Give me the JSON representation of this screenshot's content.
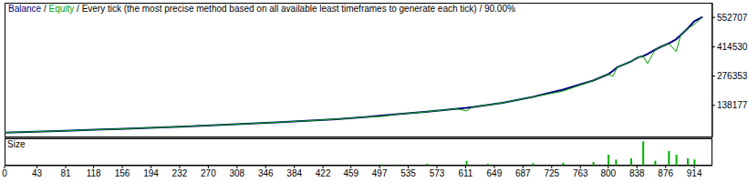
{
  "chart_data": [
    {
      "type": "line",
      "title": "Every tick (the most precise method based on all available least timeframes to generate each tick) / 90.00%",
      "x": [
        0,
        40,
        80,
        120,
        160,
        200,
        240,
        280,
        320,
        360,
        400,
        440,
        480,
        500,
        520,
        560,
        600,
        612,
        620,
        660,
        700,
        740,
        780,
        800,
        806,
        812,
        830,
        840,
        846,
        852,
        862,
        870,
        880,
        890,
        896,
        905,
        914,
        925
      ],
      "series": [
        {
          "name": "Balance",
          "color": "#000080",
          "values": [
            10000,
            14000,
            18000,
            23000,
            28000,
            33000,
            39000,
            45000,
            51000,
            58000,
            65000,
            73000,
            84000,
            90000,
            96000,
            108000,
            122000,
            126000,
            130000,
            150000,
            178000,
            212000,
            255000,
            285000,
            300000,
            318000,
            345000,
            365000,
            370000,
            380000,
            400000,
            415000,
            430000,
            450000,
            470000,
            500000,
            535000,
            555000
          ]
        },
        {
          "name": "Equity",
          "color": "#00a000",
          "values": [
            10000,
            14000,
            18000,
            23000,
            28000,
            33000,
            39000,
            45000,
            51000,
            58000,
            65000,
            73000,
            84000,
            86000,
            96000,
            108000,
            122000,
            112000,
            130000,
            150000,
            178000,
            205000,
            255000,
            285000,
            275000,
            318000,
            345000,
            365000,
            370000,
            335000,
            400000,
            415000,
            430000,
            392000,
            470000,
            500000,
            520000,
            555000
          ]
        }
      ],
      "xlim": [
        0,
        938
      ],
      "ylim": [
        -13000,
        622000
      ],
      "yticks": [
        0,
        138177,
        276353,
        414530,
        552707
      ],
      "tick_labels": "y",
      "grid": false
    },
    {
      "type": "bar",
      "title": "Size",
      "x": [
        500,
        520,
        560,
        612,
        640,
        700,
        740,
        780,
        800,
        810,
        830,
        846,
        862,
        880,
        890,
        905,
        914
      ],
      "values": [
        0.05,
        0.05,
        0.08,
        0.2,
        0.08,
        0.1,
        0.12,
        0.15,
        0.45,
        0.25,
        0.3,
        1.0,
        0.2,
        0.6,
        0.45,
        0.3,
        0.25
      ],
      "color": "#00b000",
      "xlim": [
        0,
        938
      ],
      "ylim": [
        0,
        1.05
      ],
      "xticks": [
        0,
        43,
        81,
        118,
        156,
        194,
        232,
        270,
        308,
        346,
        384,
        422,
        459,
        497,
        535,
        573,
        611,
        649,
        687,
        725,
        763,
        800,
        838,
        876,
        914
      ],
      "tick_labels": "x",
      "grid": false
    }
  ]
}
